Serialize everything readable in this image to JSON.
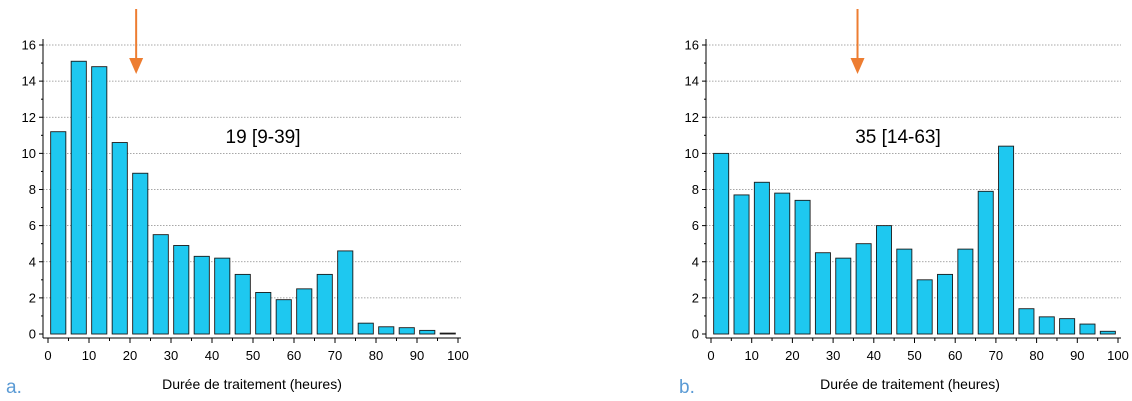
{
  "chart_data": [
    {
      "type": "bar",
      "panel_label": "a.",
      "xlabel": "Durée de traitement (heures)",
      "ylabel": "",
      "annotation": "19 [9-39]",
      "arrow_at_x": 21.5,
      "xlim": [
        0,
        100
      ],
      "ylim": [
        0,
        16
      ],
      "xticks": [
        "0",
        "10",
        "20",
        "30",
        "40",
        "50",
        "60",
        "70",
        "80",
        "90",
        "100"
      ],
      "yticks": [
        "0",
        "2",
        "4",
        "6",
        "8",
        "10",
        "12",
        "14",
        "16"
      ],
      "grid": true,
      "x": [
        2.5,
        7.5,
        12.5,
        17.5,
        22.5,
        27.5,
        32.5,
        37.5,
        42.5,
        47.5,
        52.5,
        57.5,
        62.5,
        67.5,
        72.5,
        77.5,
        82.5,
        87.5,
        92.5,
        97.5
      ],
      "values": [
        11.2,
        15.1,
        14.8,
        10.6,
        8.9,
        5.5,
        4.9,
        4.3,
        4.2,
        3.3,
        2.3,
        1.9,
        2.5,
        3.3,
        4.6,
        0.6,
        0.4,
        0.35,
        0.2,
        0.05
      ],
      "bar_color": "#1EC8F0"
    },
    {
      "type": "bar",
      "panel_label": "b.",
      "xlabel": "Durée de traitement (heures)",
      "ylabel": "",
      "annotation": "35 [14-63]",
      "arrow_at_x": 36,
      "xlim": [
        0,
        100
      ],
      "ylim": [
        0,
        16
      ],
      "xticks": [
        "0",
        "10",
        "20",
        "30",
        "40",
        "50",
        "60",
        "70",
        "80",
        "90",
        "100"
      ],
      "yticks": [
        "0",
        "2",
        "4",
        "6",
        "8",
        "10",
        "12",
        "14",
        "16"
      ],
      "grid": true,
      "x": [
        2.5,
        7.5,
        12.5,
        17.5,
        22.5,
        27.5,
        32.5,
        37.5,
        42.5,
        47.5,
        52.5,
        57.5,
        62.5,
        67.5,
        72.5,
        77.5,
        82.5,
        87.5,
        92.5,
        97.5
      ],
      "values": [
        10.0,
        7.7,
        8.4,
        7.8,
        7.4,
        4.5,
        4.2,
        5.0,
        6.0,
        4.7,
        3.0,
        3.3,
        4.7,
        7.9,
        10.4,
        1.4,
        0.95,
        0.85,
        0.55,
        0.15
      ],
      "bar_color": "#1EC8F0"
    }
  ],
  "colors": {
    "bar": "#1EC8F0",
    "arrow": "#ED7D31",
    "panel_label": "#5B9BD5"
  }
}
